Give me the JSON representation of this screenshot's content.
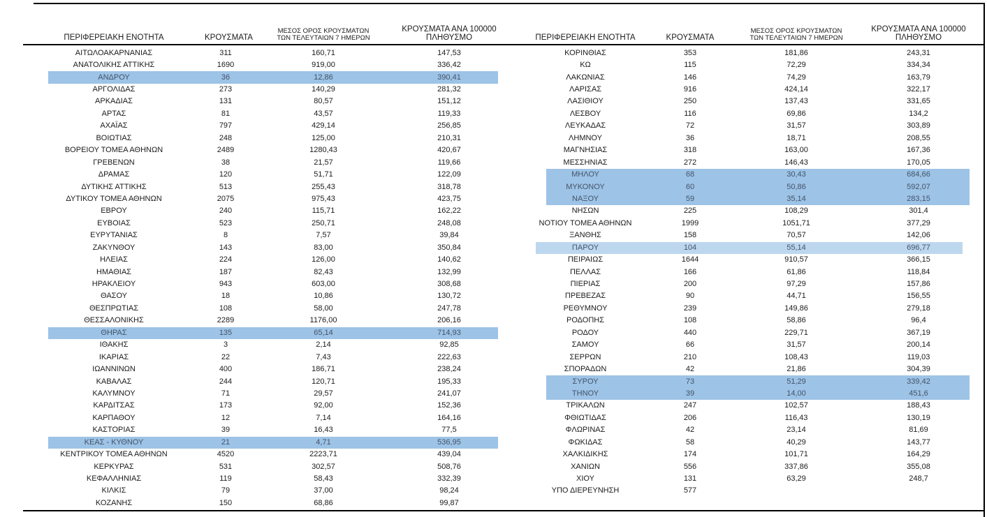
{
  "headers": {
    "col1": "ΠΕΡΙΦΕΡΕΙΑΚΗ ΕΝΟΤΗΤΑ",
    "col2": "ΚΡΟΥΣΜΑΤΑ",
    "col3_line1": "ΜΕΣΟΣ ΟΡΟΣ ΚΡΟΥΣΜΑΤΩΝ",
    "col3_line2": "ΤΩΝ ΤΕΛΕΥΤΑΙΩΝ 7 ΗΜΕΡΩΝ",
    "col4_line1": "ΚΡΟΥΣΜΑΤΑ ΑΝΑ 100000",
    "col4_line2": "ΠΛΗΘΥΣΜΟ"
  },
  "colors": {
    "highlight_dark": "#9DC3E6",
    "highlight_light": "#BDD7EE",
    "highlight_text": "#44546A",
    "text": "#1b1b1b",
    "rule": "#000000"
  },
  "left_table": {
    "rows": [
      {
        "name": "ΑΙΤΩΛΟΑΚΑΡΝΑΝΙΑΣ",
        "cases": "311",
        "avg7": "160,71",
        "per100k": "147,53",
        "highlight": null
      },
      {
        "name": "ΑΝΑΤΟΛΙΚΗΣ ΑΤΤΙΚΗΣ",
        "cases": "1690",
        "avg7": "919,00",
        "per100k": "336,42",
        "highlight": null
      },
      {
        "name": "ΑΝΔΡΟΥ",
        "cases": "36",
        "avg7": "12,86",
        "per100k": "390,41",
        "highlight": "dark"
      },
      {
        "name": "ΑΡΓΟΛΙΔΑΣ",
        "cases": "273",
        "avg7": "140,29",
        "per100k": "281,32",
        "highlight": null
      },
      {
        "name": "ΑΡΚΑΔΙΑΣ",
        "cases": "131",
        "avg7": "80,57",
        "per100k": "151,12",
        "highlight": null
      },
      {
        "name": "ΑΡΤΑΣ",
        "cases": "81",
        "avg7": "43,57",
        "per100k": "119,33",
        "highlight": null
      },
      {
        "name": "ΑΧΑΪΑΣ",
        "cases": "797",
        "avg7": "429,14",
        "per100k": "256,85",
        "highlight": null
      },
      {
        "name": "ΒΟΙΩΤΙΑΣ",
        "cases": "248",
        "avg7": "125,00",
        "per100k": "210,31",
        "highlight": null
      },
      {
        "name": "ΒΟΡΕΙΟΥ ΤΟΜΕΑ ΑΘΗΝΩΝ",
        "cases": "2489",
        "avg7": "1280,43",
        "per100k": "420,67",
        "highlight": null
      },
      {
        "name": "ΓΡΕΒΕΝΩΝ",
        "cases": "38",
        "avg7": "21,57",
        "per100k": "119,66",
        "highlight": null
      },
      {
        "name": "ΔΡΑΜΑΣ",
        "cases": "120",
        "avg7": "51,71",
        "per100k": "122,09",
        "highlight": null
      },
      {
        "name": "ΔΥΤΙΚΗΣ ΑΤΤΙΚΗΣ",
        "cases": "513",
        "avg7": "255,43",
        "per100k": "318,78",
        "highlight": null
      },
      {
        "name": "ΔΥΤΙΚΟΥ ΤΟΜΕΑ ΑΘΗΝΩΝ",
        "cases": "2075",
        "avg7": "975,43",
        "per100k": "423,75",
        "highlight": null
      },
      {
        "name": "ΕΒΡΟΥ",
        "cases": "240",
        "avg7": "115,71",
        "per100k": "162,22",
        "highlight": null
      },
      {
        "name": "ΕΥΒΟΙΑΣ",
        "cases": "523",
        "avg7": "250,71",
        "per100k": "248,08",
        "highlight": null
      },
      {
        "name": "ΕΥΡΥΤΑΝΙΑΣ",
        "cases": "8",
        "avg7": "7,57",
        "per100k": "39,84",
        "highlight": null
      },
      {
        "name": "ΖΑΚΥΝΘΟΥ",
        "cases": "143",
        "avg7": "83,00",
        "per100k": "350,84",
        "highlight": null
      },
      {
        "name": "ΗΛΕΙΑΣ",
        "cases": "224",
        "avg7": "126,00",
        "per100k": "140,62",
        "highlight": null
      },
      {
        "name": "ΗΜΑΘΙΑΣ",
        "cases": "187",
        "avg7": "82,43",
        "per100k": "132,99",
        "highlight": null
      },
      {
        "name": "ΗΡΑΚΛΕΙΟΥ",
        "cases": "943",
        "avg7": "603,00",
        "per100k": "308,68",
        "highlight": null
      },
      {
        "name": "ΘΑΣΟΥ",
        "cases": "18",
        "avg7": "10,86",
        "per100k": "130,72",
        "highlight": null
      },
      {
        "name": "ΘΕΣΠΡΩΤΙΑΣ",
        "cases": "108",
        "avg7": "58,00",
        "per100k": "247,78",
        "highlight": null
      },
      {
        "name": "ΘΕΣΣΑΛΟΝΙΚΗΣ",
        "cases": "2289",
        "avg7": "1176,00",
        "per100k": "206,16",
        "highlight": null
      },
      {
        "name": "ΘΗΡΑΣ",
        "cases": "135",
        "avg7": "65,14",
        "per100k": "714,93",
        "highlight": "dark"
      },
      {
        "name": "ΙΘΑΚΗΣ",
        "cases": "3",
        "avg7": "2,14",
        "per100k": "92,85",
        "highlight": null
      },
      {
        "name": "ΙΚΑΡΙΑΣ",
        "cases": "22",
        "avg7": "7,43",
        "per100k": "222,63",
        "highlight": null
      },
      {
        "name": "ΙΩΑΝΝΙΝΩΝ",
        "cases": "400",
        "avg7": "186,71",
        "per100k": "238,24",
        "highlight": null
      },
      {
        "name": "ΚΑΒΑΛΑΣ",
        "cases": "244",
        "avg7": "120,71",
        "per100k": "195,33",
        "highlight": null
      },
      {
        "name": "ΚΑΛΥΜΝΟΥ",
        "cases": "71",
        "avg7": "29,57",
        "per100k": "241,07",
        "highlight": null
      },
      {
        "name": "ΚΑΡΔΙΤΣΑΣ",
        "cases": "173",
        "avg7": "92,00",
        "per100k": "152,36",
        "highlight": null
      },
      {
        "name": "ΚΑΡΠΑΘΟΥ",
        "cases": "12",
        "avg7": "7,14",
        "per100k": "164,16",
        "highlight": null
      },
      {
        "name": "ΚΑΣΤΟΡΙΑΣ",
        "cases": "39",
        "avg7": "16,43",
        "per100k": "77,5",
        "highlight": null
      },
      {
        "name": "ΚΕΑΣ - ΚΥΘΝΟΥ",
        "cases": "21",
        "avg7": "4,71",
        "per100k": "536,95",
        "highlight": "dark"
      },
      {
        "name": "ΚΕΝΤΡΙΚΟΥ ΤΟΜΕΑ ΑΘΗΝΩΝ",
        "cases": "4520",
        "avg7": "2223,71",
        "per100k": "439,04",
        "highlight": null
      },
      {
        "name": "ΚΕΡΚΥΡΑΣ",
        "cases": "531",
        "avg7": "302,57",
        "per100k": "508,76",
        "highlight": null
      },
      {
        "name": "ΚΕΦΑΛΛΗΝΙΑΣ",
        "cases": "119",
        "avg7": "58,43",
        "per100k": "332,39",
        "highlight": null
      },
      {
        "name": "ΚΙΛΚΙΣ",
        "cases": "79",
        "avg7": "37,00",
        "per100k": "98,24",
        "highlight": null
      },
      {
        "name": "ΚΟΖΑΝΗΣ",
        "cases": "150",
        "avg7": "68,86",
        "per100k": "99,87",
        "highlight": null
      }
    ]
  },
  "right_table": {
    "rows": [
      {
        "name": "ΚΟΡΙΝΘΙΑΣ",
        "cases": "353",
        "avg7": "181,86",
        "per100k": "243,31",
        "highlight": null
      },
      {
        "name": "ΚΩ",
        "cases": "115",
        "avg7": "72,29",
        "per100k": "334,34",
        "highlight": null
      },
      {
        "name": "ΛΑΚΩΝΙΑΣ",
        "cases": "146",
        "avg7": "74,29",
        "per100k": "163,79",
        "highlight": null
      },
      {
        "name": "ΛΑΡΙΣΑΣ",
        "cases": "916",
        "avg7": "424,14",
        "per100k": "322,17",
        "highlight": null
      },
      {
        "name": "ΛΑΣΙΘΙΟΥ",
        "cases": "250",
        "avg7": "137,43",
        "per100k": "331,65",
        "highlight": null
      },
      {
        "name": "ΛΕΣΒΟΥ",
        "cases": "116",
        "avg7": "69,86",
        "per100k": "134,2",
        "highlight": null
      },
      {
        "name": "ΛΕΥΚΑΔΑΣ",
        "cases": "72",
        "avg7": "31,57",
        "per100k": "303,89",
        "highlight": null
      },
      {
        "name": "ΛΗΜΝΟΥ",
        "cases": "36",
        "avg7": "18,71",
        "per100k": "208,55",
        "highlight": null
      },
      {
        "name": "ΜΑΓΝΗΣΙΑΣ",
        "cases": "318",
        "avg7": "163,00",
        "per100k": "167,36",
        "highlight": null
      },
      {
        "name": "ΜΕΣΣΗΝΙΑΣ",
        "cases": "272",
        "avg7": "146,43",
        "per100k": "170,05",
        "highlight": null
      },
      {
        "name": "ΜΗΛΟΥ",
        "cases": "68",
        "avg7": "30,43",
        "per100k": "684,66",
        "highlight": "dark"
      },
      {
        "name": "ΜΥΚΟΝΟΥ",
        "cases": "60",
        "avg7": "50,86",
        "per100k": "592,07",
        "highlight": "dark"
      },
      {
        "name": "ΝΑΞΟΥ",
        "cases": "59",
        "avg7": "35,14",
        "per100k": "283,15",
        "highlight": "dark"
      },
      {
        "name": "ΝΗΣΩΝ",
        "cases": "225",
        "avg7": "108,29",
        "per100k": "301,4",
        "highlight": null
      },
      {
        "name": "ΝΟΤΙΟΥ ΤΟΜΕΑ ΑΘΗΝΩΝ",
        "cases": "1999",
        "avg7": "1051,71",
        "per100k": "377,29",
        "highlight": null
      },
      {
        "name": "ΞΑΝΘΗΣ",
        "cases": "158",
        "avg7": "70,57",
        "per100k": "142,06",
        "highlight": null
      },
      {
        "name": "ΠΑΡΟΥ",
        "cases": "104",
        "avg7": "55,14",
        "per100k": "696,77",
        "highlight": "light"
      },
      {
        "name": "ΠΕΙΡΑΙΩΣ",
        "cases": "1644",
        "avg7": "910,57",
        "per100k": "366,15",
        "highlight": null
      },
      {
        "name": "ΠΕΛΛΑΣ",
        "cases": "166",
        "avg7": "61,86",
        "per100k": "118,84",
        "highlight": null
      },
      {
        "name": "ΠΙΕΡΙΑΣ",
        "cases": "200",
        "avg7": "97,29",
        "per100k": "157,86",
        "highlight": null
      },
      {
        "name": "ΠΡΕΒΕΖΑΣ",
        "cases": "90",
        "avg7": "44,71",
        "per100k": "156,55",
        "highlight": null
      },
      {
        "name": "ΡΕΘΥΜΝΟΥ",
        "cases": "239",
        "avg7": "149,86",
        "per100k": "279,18",
        "highlight": null
      },
      {
        "name": "ΡΟΔΟΠΗΣ",
        "cases": "108",
        "avg7": "58,86",
        "per100k": "96,4",
        "highlight": null
      },
      {
        "name": "ΡΟΔΟΥ",
        "cases": "440",
        "avg7": "229,71",
        "per100k": "367,19",
        "highlight": null
      },
      {
        "name": "ΣΑΜΟΥ",
        "cases": "66",
        "avg7": "31,57",
        "per100k": "200,14",
        "highlight": null
      },
      {
        "name": "ΣΕΡΡΩΝ",
        "cases": "210",
        "avg7": "108,43",
        "per100k": "119,03",
        "highlight": null
      },
      {
        "name": "ΣΠΟΡΑΔΩΝ",
        "cases": "42",
        "avg7": "21,86",
        "per100k": "304,39",
        "highlight": null
      },
      {
        "name": "ΣΥΡΟΥ",
        "cases": "73",
        "avg7": "51,29",
        "per100k": "339,42",
        "highlight": "dark"
      },
      {
        "name": "ΤΗΝΟΥ",
        "cases": "39",
        "avg7": "14,00",
        "per100k": "451,6",
        "highlight": "dark"
      },
      {
        "name": "ΤΡΙΚΑΛΩΝ",
        "cases": "247",
        "avg7": "102,57",
        "per100k": "188,43",
        "highlight": null
      },
      {
        "name": "ΦΘΙΩΤΙΔΑΣ",
        "cases": "206",
        "avg7": "116,43",
        "per100k": "130,19",
        "highlight": null
      },
      {
        "name": "ΦΛΩΡΙΝΑΣ",
        "cases": "42",
        "avg7": "23,14",
        "per100k": "81,69",
        "highlight": null
      },
      {
        "name": "ΦΩΚΙΔΑΣ",
        "cases": "58",
        "avg7": "40,29",
        "per100k": "143,77",
        "highlight": null
      },
      {
        "name": "ΧΑΛΚΙΔΙΚΗΣ",
        "cases": "174",
        "avg7": "101,71",
        "per100k": "164,29",
        "highlight": null
      },
      {
        "name": "ΧΑΝΙΩΝ",
        "cases": "556",
        "avg7": "337,86",
        "per100k": "355,08",
        "highlight": null
      },
      {
        "name": "ΧΙΟΥ",
        "cases": "131",
        "avg7": "63,29",
        "per100k": "248,7",
        "highlight": null
      },
      {
        "name": "ΥΠΟ ΔΙΕΡΕΥΝΗΣΗ",
        "cases": "577",
        "avg7": "",
        "per100k": "",
        "highlight": null
      }
    ]
  }
}
